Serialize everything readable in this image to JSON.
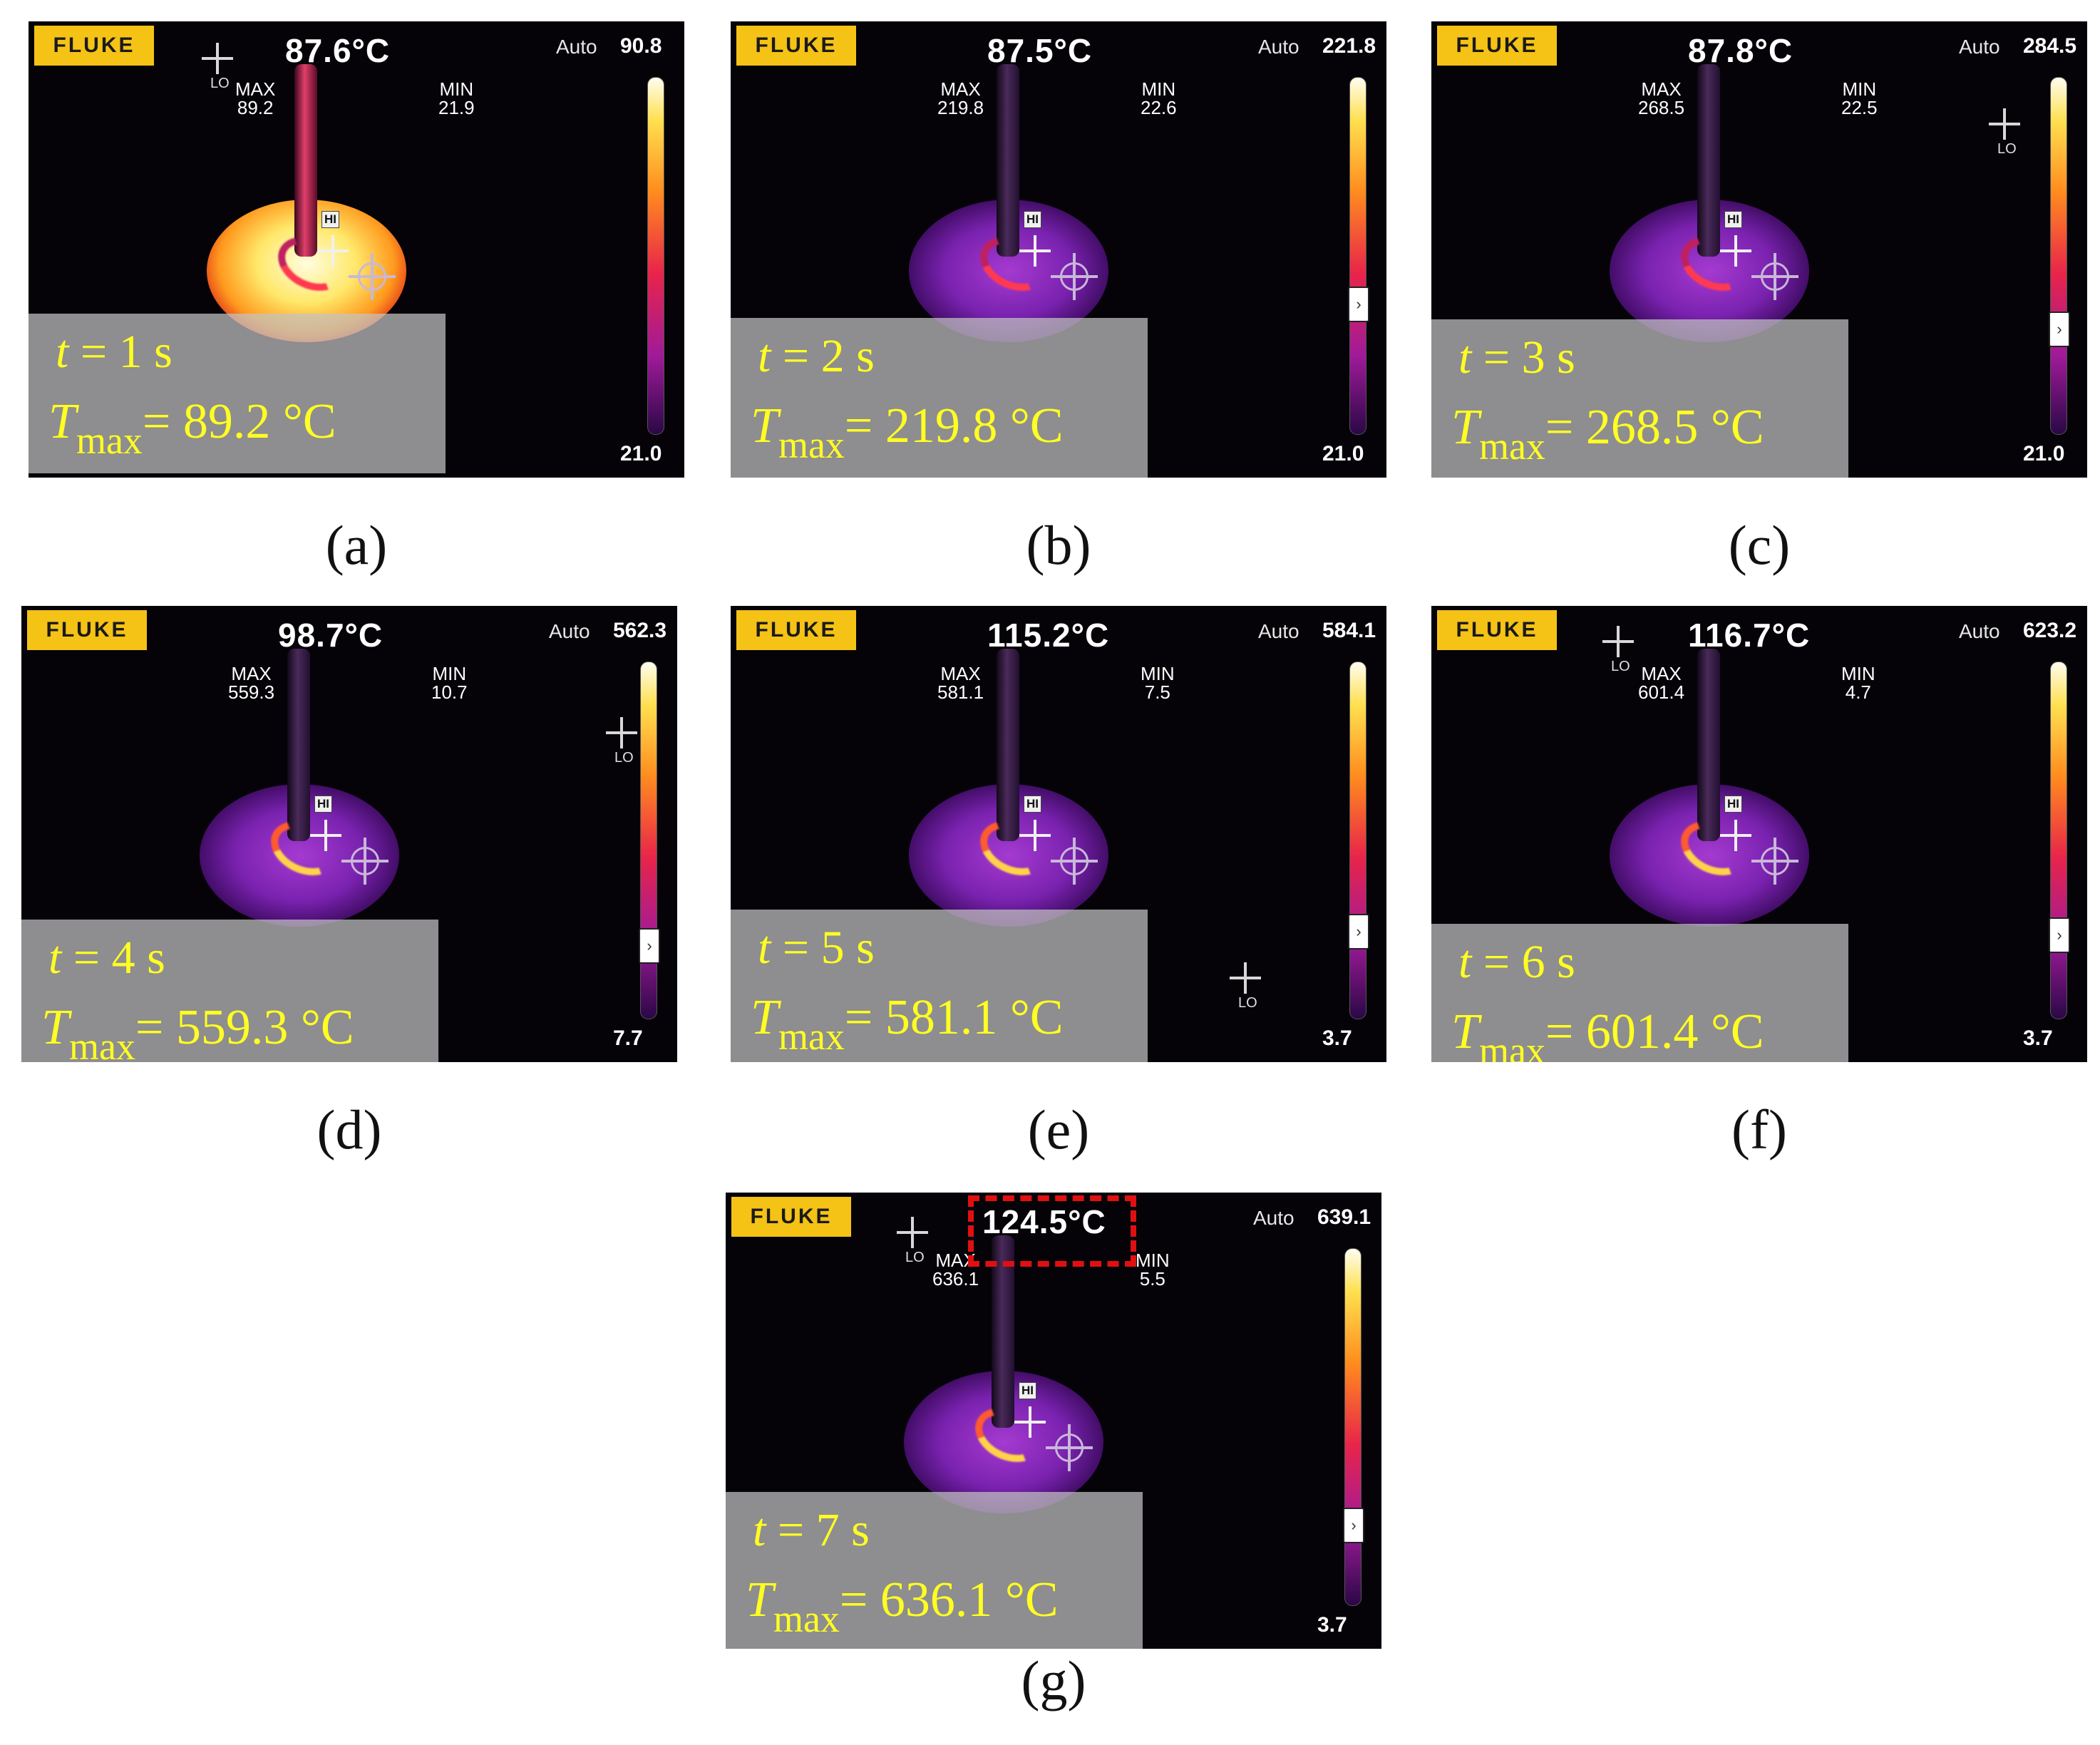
{
  "brand": "FLUKE",
  "auto_label": "Auto",
  "max_label": "MAX",
  "min_label": "MIN",
  "hi_label": "HI",
  "lo_label": "LO",
  "scale_marker_glyph": "›",
  "colors": {
    "brand_bg": "#f5c216",
    "overlay_text": "#ffff22",
    "highlight_box": "#e01010"
  },
  "panels": [
    {
      "id": "a",
      "caption": "(a)",
      "center_temp": "87.6°C",
      "range_max": "90.8",
      "range_min": "21.0",
      "max_value": "89.2",
      "min_value": "21.9",
      "time_value": "1 s",
      "tmax_value": "89.2 °C",
      "scale_level": 0.0
    },
    {
      "id": "b",
      "caption": "(b)",
      "center_temp": "87.5°C",
      "range_max": "221.8",
      "range_min": "21.0",
      "max_value": "219.8",
      "min_value": "22.6",
      "time_value": "2  s",
      "tmax_value": "219.8 °C",
      "scale_level": 0.32
    },
    {
      "id": "c",
      "caption": "(c)",
      "center_temp": "87.8°C",
      "range_max": "284.5",
      "range_min": "21.0",
      "max_value": "268.5",
      "min_value": "22.5",
      "time_value": "3 s",
      "tmax_value": "268.5 °C",
      "scale_level": 0.25
    },
    {
      "id": "d",
      "caption": "(d)",
      "center_temp": "98.7°C",
      "range_max": "562.3",
      "range_min": "7.7",
      "max_value": "559.3",
      "min_value": "10.7",
      "time_value": "4 s",
      "tmax_value": "559.3 °C",
      "scale_level": 0.16
    },
    {
      "id": "e",
      "caption": "(e)",
      "center_temp": "115.2°C",
      "range_max": "584.1",
      "range_min": "3.7",
      "max_value": "581.1",
      "min_value": "7.5",
      "time_value": "5 s",
      "tmax_value": "581.1 °C",
      "scale_level": 0.2
    },
    {
      "id": "f",
      "caption": "(f)",
      "center_temp": "116.7°C",
      "range_max": "623.2",
      "range_min": "3.7",
      "max_value": "601.4",
      "min_value": "4.7",
      "time_value": "6 s",
      "tmax_value": "601.4 °C",
      "scale_level": 0.19
    },
    {
      "id": "g",
      "caption": "(g)",
      "center_temp": "124.5°C",
      "range_max": "639.1",
      "range_min": "3.7",
      "max_value": "636.1",
      "min_value": "5.5",
      "time_value": "7 s",
      "tmax_value": "636.1 °C",
      "scale_level": 0.18
    }
  ]
}
